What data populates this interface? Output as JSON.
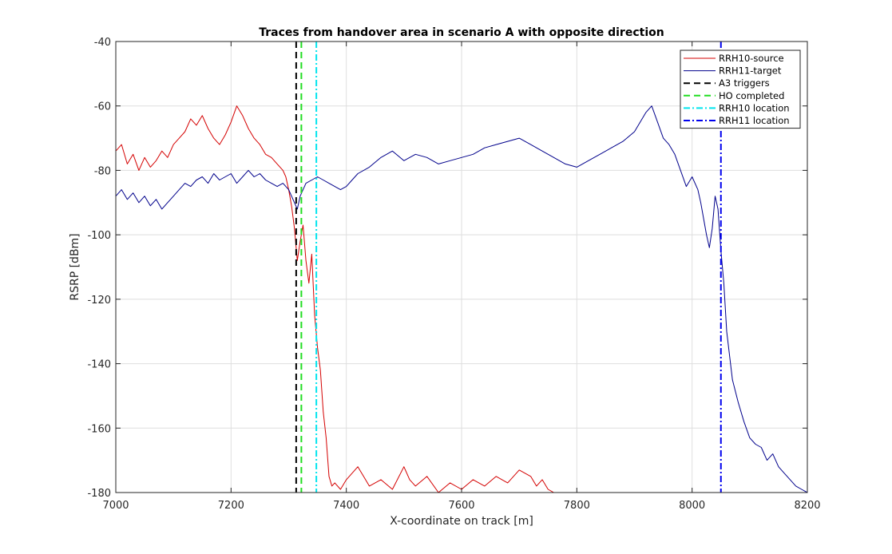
{
  "chart_data": {
    "type": "line",
    "title": "Traces from handover area in scenario A with opposite direction",
    "xlabel": "X-coordinate on track [m]",
    "ylabel": "RSRP [dBm]",
    "xlim": [
      7000,
      8200
    ],
    "ylim": [
      -180,
      -40
    ],
    "xticks": [
      7000,
      7200,
      7400,
      7600,
      7800,
      8000,
      8200
    ],
    "yticks": [
      -180,
      -160,
      -140,
      -120,
      -100,
      -80,
      -60,
      -40
    ],
    "grid": true,
    "legend_position": "top-right",
    "series": [
      {
        "name": "RRH10-source",
        "color": "#d40000",
        "style": "solid",
        "x": [
          7000,
          7010,
          7020,
          7030,
          7040,
          7050,
          7060,
          7070,
          7080,
          7090,
          7100,
          7110,
          7120,
          7130,
          7140,
          7150,
          7160,
          7170,
          7180,
          7190,
          7200,
          7210,
          7220,
          7230,
          7240,
          7250,
          7260,
          7270,
          7280,
          7290,
          7295,
          7300,
          7305,
          7310,
          7315,
          7320,
          7325,
          7330,
          7335,
          7340,
          7345,
          7350,
          7355,
          7360,
          7365,
          7370,
          7375,
          7380,
          7390,
          7400,
          7410,
          7420,
          7430,
          7440,
          7460,
          7480,
          7500,
          7510,
          7520,
          7540,
          7560,
          7580,
          7600,
          7620,
          7640,
          7660,
          7680,
          7700,
          7720,
          7730,
          7740,
          7750,
          7760
        ],
        "y": [
          -74,
          -72,
          -78,
          -75,
          -80,
          -76,
          -79,
          -77,
          -74,
          -76,
          -72,
          -70,
          -68,
          -64,
          -66,
          -63,
          -67,
          -70,
          -72,
          -69,
          -65,
          -60,
          -63,
          -67,
          -70,
          -72,
          -75,
          -76,
          -78,
          -80,
          -82,
          -86,
          -91,
          -98,
          -108,
          -102,
          -97,
          -108,
          -115,
          -106,
          -125,
          -135,
          -142,
          -155,
          -163,
          -175,
          -178,
          -177,
          -179,
          -176,
          -174,
          -172,
          -175,
          -178,
          -176,
          -179,
          -172,
          -176,
          -178,
          -175,
          -180,
          -177,
          -179,
          -176,
          -178,
          -175,
          -177,
          -173,
          -175,
          -178,
          -176,
          -179,
          -180
        ]
      },
      {
        "name": "RRH11-target",
        "color": "#00008b",
        "style": "solid",
        "x": [
          7000,
          7010,
          7020,
          7030,
          7040,
          7050,
          7060,
          7070,
          7080,
          7090,
          7100,
          7110,
          7120,
          7130,
          7140,
          7150,
          7160,
          7170,
          7180,
          7190,
          7200,
          7210,
          7220,
          7230,
          7240,
          7250,
          7260,
          7270,
          7280,
          7290,
          7300,
          7305,
          7310,
          7315,
          7320,
          7325,
          7330,
          7340,
          7350,
          7360,
          7370,
          7380,
          7390,
          7400,
          7410,
          7420,
          7440,
          7460,
          7480,
          7500,
          7520,
          7540,
          7560,
          7580,
          7600,
          7620,
          7640,
          7660,
          7680,
          7700,
          7720,
          7740,
          7760,
          7780,
          7800,
          7820,
          7840,
          7860,
          7880,
          7900,
          7920,
          7930,
          7940,
          7950,
          7960,
          7970,
          7980,
          7990,
          8000,
          8010,
          8015,
          8020,
          8025,
          8030,
          8035,
          8040,
          8045,
          8050,
          8055,
          8060,
          8070,
          8080,
          8090,
          8100,
          8110,
          8120,
          8130,
          8140,
          8150,
          8160,
          8170,
          8180,
          8190,
          8200
        ],
        "y": [
          -88,
          -86,
          -89,
          -87,
          -90,
          -88,
          -91,
          -89,
          -92,
          -90,
          -88,
          -86,
          -84,
          -85,
          -83,
          -82,
          -84,
          -81,
          -83,
          -82,
          -81,
          -84,
          -82,
          -80,
          -82,
          -81,
          -83,
          -84,
          -85,
          -84,
          -86,
          -88,
          -90,
          -92,
          -88,
          -86,
          -84,
          -83,
          -82,
          -83,
          -84,
          -85,
          -86,
          -85,
          -83,
          -81,
          -79,
          -76,
          -74,
          -77,
          -75,
          -76,
          -78,
          -77,
          -76,
          -75,
          -73,
          -72,
          -71,
          -70,
          -72,
          -74,
          -76,
          -78,
          -79,
          -77,
          -75,
          -73,
          -71,
          -68,
          -62,
          -60,
          -65,
          -70,
          -72,
          -75,
          -80,
          -85,
          -82,
          -86,
          -90,
          -95,
          -100,
          -104,
          -98,
          -88,
          -92,
          -105,
          -115,
          -130,
          -145,
          -152,
          -158,
          -163,
          -165,
          -166,
          -170,
          -168,
          -172,
          -174,
          -176,
          -178,
          -179,
          -180
        ]
      },
      {
        "name": "A3 triggers",
        "color": "#000000",
        "style": "dashed",
        "vline_x": 7313
      },
      {
        "name": "HO completed",
        "color": "#22dd22",
        "style": "dashed",
        "vline_x": 7322
      },
      {
        "name": "RRH10 location",
        "color": "#00e5ee",
        "style": "dashdot",
        "vline_x": 7348
      },
      {
        "name": "RRH11 location",
        "color": "#0000ee",
        "style": "dashdot",
        "vline_x": 8050
      }
    ]
  }
}
